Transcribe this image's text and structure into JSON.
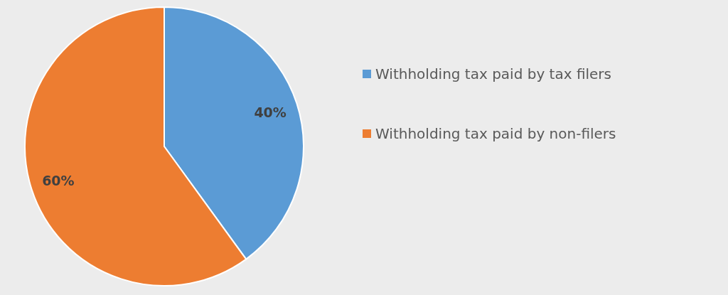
{
  "chart_data": {
    "type": "pie",
    "categories": [
      "Withholding tax paid by tax filers",
      "Withholding tax paid by non-filers"
    ],
    "values": [
      40,
      60
    ],
    "colors": [
      "#5b9bd5",
      "#ed7d31"
    ],
    "value_labels": [
      "40%",
      "60%"
    ],
    "legend": "right"
  }
}
